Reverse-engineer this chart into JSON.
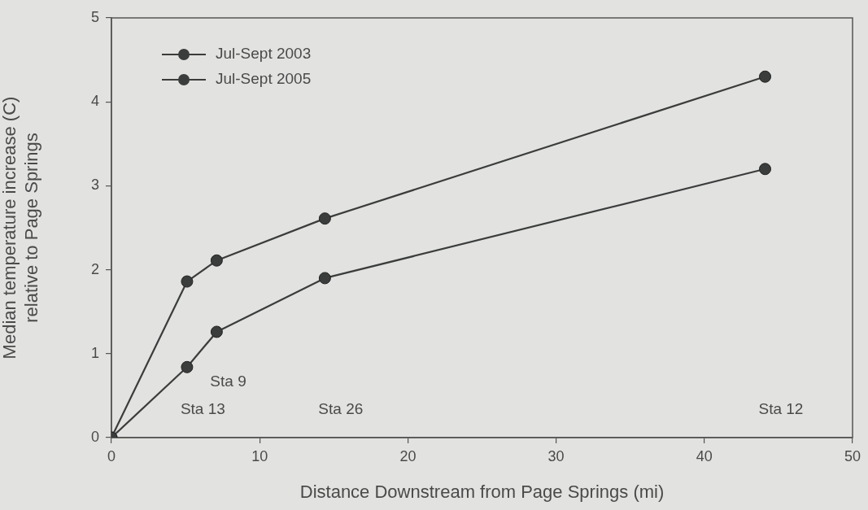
{
  "chart_data": {
    "type": "line",
    "xlabel": "Distance Downstream from Page Springs (mi)",
    "ylabel": "Median temperature increase (C)\nrelative to Page Springs",
    "x": [
      0,
      5.1,
      7.1,
      14.4,
      44.1
    ],
    "series": [
      {
        "name": "Jul-Sept 2003",
        "color": "#3a3d3c",
        "values": [
          0,
          1.86,
          2.11,
          2.61,
          4.3
        ]
      },
      {
        "name": "Jul-Sept 2005",
        "color": "#3a3d3c",
        "values": [
          0,
          0.84,
          1.26,
          1.9,
          3.2
        ]
      }
    ],
    "xlim": [
      0,
      50
    ],
    "xticks": [
      0,
      10,
      20,
      30,
      40,
      50
    ],
    "ylim": [
      0,
      5
    ],
    "yticks": [
      0,
      1,
      2,
      3,
      4,
      5
    ],
    "annotations": [
      "Sta 13",
      "Sta 9",
      "Sta 26",
      "Sta 12"
    ],
    "grid": false,
    "legend": "top left",
    "marker": "circle",
    "line_style": "solid"
  }
}
